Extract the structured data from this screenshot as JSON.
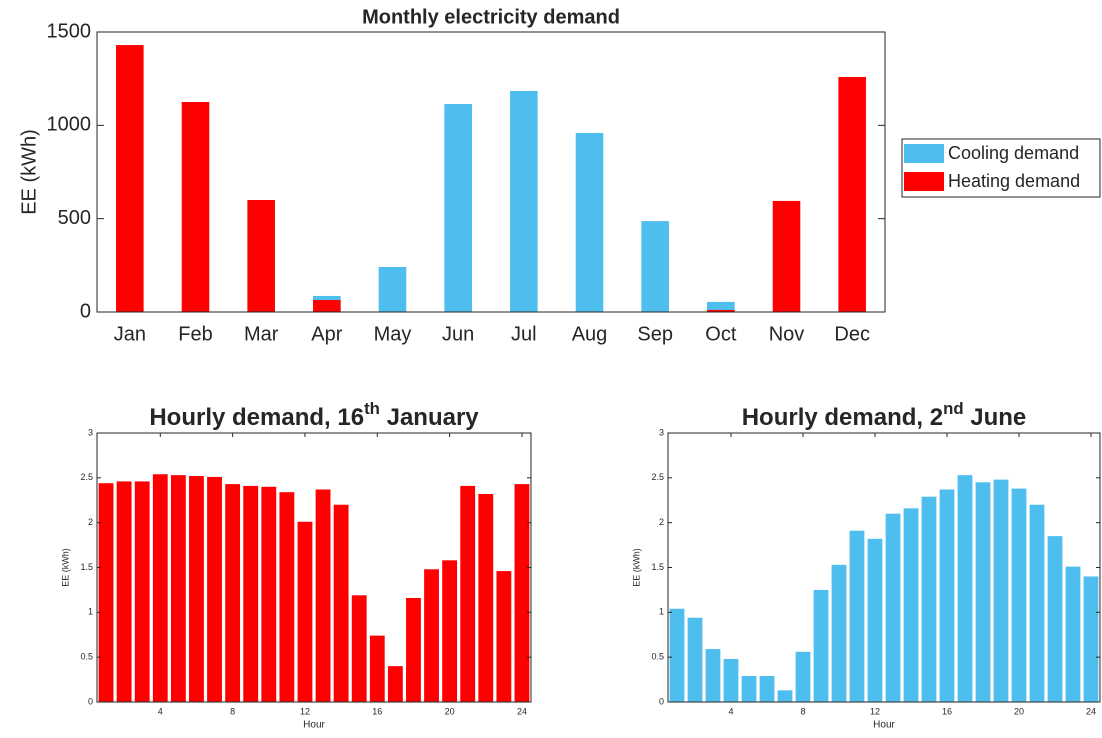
{
  "chart_data": [
    {
      "type": "bar",
      "title": "Monthly electricity demand",
      "ylabel": "EE (kWh)",
      "categories": [
        "Jan",
        "Feb",
        "Mar",
        "Apr",
        "May",
        "Jun",
        "Jul",
        "Aug",
        "Sep",
        "Oct",
        "Nov",
        "Dec"
      ],
      "bar_layout": "overlaid",
      "series": [
        {
          "name": "Cooling demand",
          "color": "#4dbeee",
          "values": [
            0,
            0,
            0,
            86,
            241,
            1114,
            1184,
            959,
            487,
            54,
            0,
            0
          ]
        },
        {
          "name": "Heating demand",
          "color": "#ff0000",
          "values": [
            1430,
            1125,
            600,
            64,
            0,
            0,
            0,
            0,
            0,
            11,
            595,
            1259
          ]
        }
      ],
      "ylim": [
        0,
        1500
      ],
      "yticks": [
        0,
        500,
        1000,
        1500
      ],
      "legend": "outside-right"
    },
    {
      "type": "bar",
      "title": [
        "Hourly demand, 16",
        "th",
        " January"
      ],
      "ylabel": "EE (kWh)",
      "xlabel": "Hour",
      "x": [
        1,
        2,
        3,
        4,
        5,
        6,
        7,
        8,
        9,
        10,
        11,
        12,
        13,
        14,
        15,
        16,
        17,
        18,
        19,
        20,
        21,
        22,
        23,
        24
      ],
      "series": [
        {
          "color": "#ff0000",
          "values": [
            2.44,
            2.46,
            2.46,
            2.54,
            2.53,
            2.52,
            2.51,
            2.43,
            2.41,
            2.4,
            2.34,
            2.01,
            2.37,
            2.2,
            1.19,
            0.74,
            0.4,
            1.16,
            1.48,
            1.58,
            2.41,
            2.32,
            1.46,
            2.43
          ]
        }
      ],
      "xlim": [
        0.5,
        24.5
      ],
      "xticks": [
        4,
        8,
        12,
        16,
        20,
        24
      ],
      "ylim": [
        0,
        3
      ],
      "yticks": [
        0,
        0.5,
        1,
        1.5,
        2,
        2.5,
        3
      ]
    },
    {
      "type": "bar",
      "title": [
        "Hourly demand, 2",
        "nd",
        " June"
      ],
      "ylabel": "EE (kWh)",
      "xlabel": "Hour",
      "x": [
        1,
        2,
        3,
        4,
        5,
        6,
        7,
        8,
        9,
        10,
        11,
        12,
        13,
        14,
        15,
        16,
        17,
        18,
        19,
        20,
        21,
        22,
        23,
        24
      ],
      "series": [
        {
          "color": "#4dbeee",
          "values": [
            1.04,
            0.94,
            0.59,
            0.48,
            0.29,
            0.29,
            0.13,
            0.56,
            1.25,
            1.53,
            1.91,
            1.82,
            2.1,
            2.16,
            2.29,
            2.37,
            2.53,
            2.45,
            2.48,
            2.38,
            2.2,
            1.85,
            1.51,
            1.4
          ]
        }
      ],
      "xlim": [
        0.5,
        24.5
      ],
      "xticks": [
        4,
        8,
        12,
        16,
        20,
        24
      ],
      "ylim": [
        0,
        3
      ],
      "yticks": [
        0,
        0.5,
        1,
        1.5,
        2,
        2.5,
        3
      ]
    }
  ]
}
